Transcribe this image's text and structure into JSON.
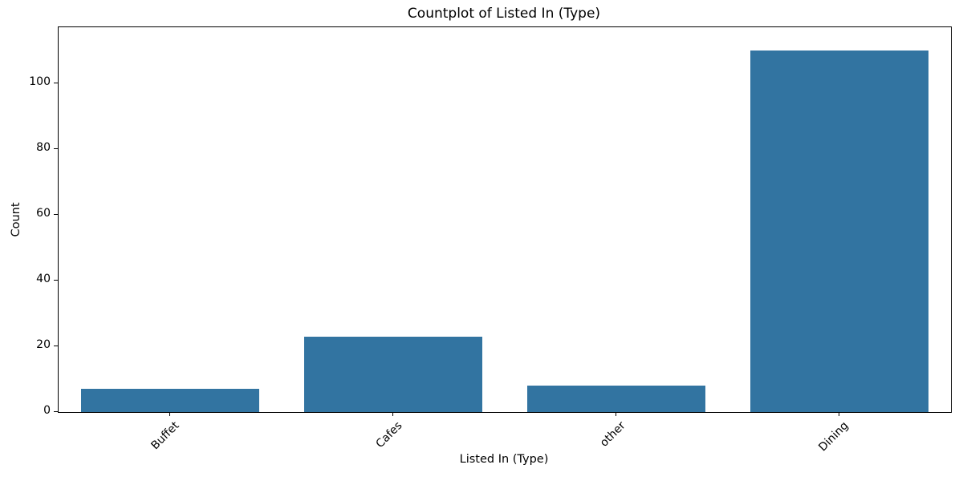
{
  "chart_data": {
    "type": "bar",
    "title": "Countplot of Listed In (Type)",
    "xlabel": "Listed In (Type)",
    "ylabel": "Count",
    "categories": [
      "Buffet",
      "Cafes",
      "other",
      "Dining"
    ],
    "values": [
      7,
      23,
      8,
      110
    ],
    "yticks": [
      0,
      20,
      40,
      60,
      80,
      100
    ],
    "ylim": [
      0,
      117
    ],
    "bar_color": "#3274a1",
    "bar_width_fraction": 0.8,
    "x_tick_rotation": 45,
    "grid": false,
    "legend_position": "none",
    "background_color": "#ffffff",
    "spine_color": "#000000"
  }
}
